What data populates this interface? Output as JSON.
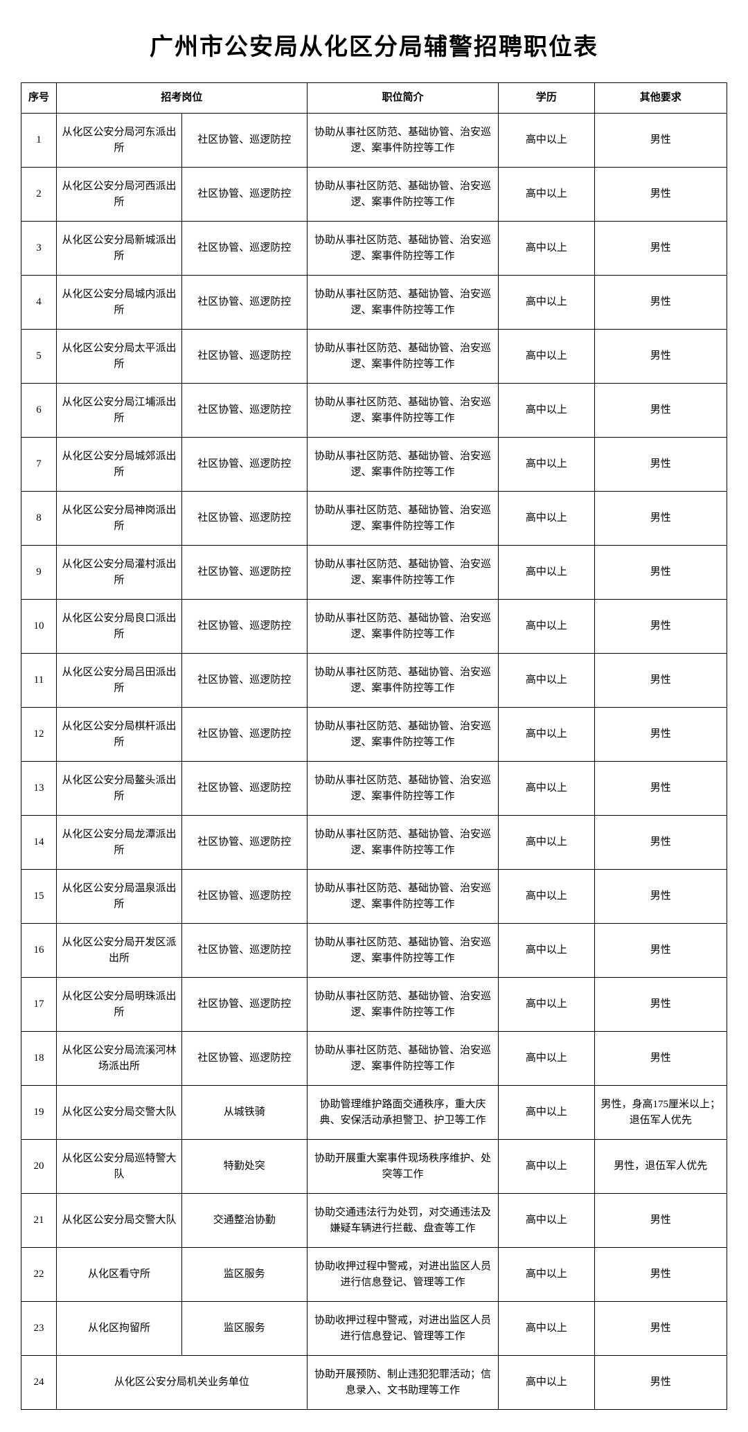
{
  "title": "广州市公安局从化区分局辅警招聘职位表",
  "headers": {
    "seq": "序号",
    "post": "招考岗位",
    "desc": "职位简介",
    "edu": "学历",
    "other": "其他要求"
  },
  "rows": [
    {
      "seq": "1",
      "unit": "从化区公安分局河东派出所",
      "post": "社区协管、巡逻防控",
      "desc": "协助从事社区防范、基础协管、治安巡逻、案事件防控等工作",
      "edu": "高中以上",
      "other": "男性"
    },
    {
      "seq": "2",
      "unit": "从化区公安分局河西派出所",
      "post": "社区协管、巡逻防控",
      "desc": "协助从事社区防范、基础协管、治安巡逻、案事件防控等工作",
      "edu": "高中以上",
      "other": "男性"
    },
    {
      "seq": "3",
      "unit": "从化区公安分局新城派出所",
      "post": "社区协管、巡逻防控",
      "desc": "协助从事社区防范、基础协管、治安巡逻、案事件防控等工作",
      "edu": "高中以上",
      "other": "男性"
    },
    {
      "seq": "4",
      "unit": "从化区公安分局城内派出所",
      "post": "社区协管、巡逻防控",
      "desc": "协助从事社区防范、基础协管、治安巡逻、案事件防控等工作",
      "edu": "高中以上",
      "other": "男性"
    },
    {
      "seq": "5",
      "unit": "从化区公安分局太平派出所",
      "post": "社区协管、巡逻防控",
      "desc": "协助从事社区防范、基础协管、治安巡逻、案事件防控等工作",
      "edu": "高中以上",
      "other": "男性"
    },
    {
      "seq": "6",
      "unit": "从化区公安分局江埔派出所",
      "post": "社区协管、巡逻防控",
      "desc": "协助从事社区防范、基础协管、治安巡逻、案事件防控等工作",
      "edu": "高中以上",
      "other": "男性"
    },
    {
      "seq": "7",
      "unit": "从化区公安分局城郊派出所",
      "post": "社区协管、巡逻防控",
      "desc": "协助从事社区防范、基础协管、治安巡逻、案事件防控等工作",
      "edu": "高中以上",
      "other": "男性"
    },
    {
      "seq": "8",
      "unit": "从化区公安分局神岗派出所",
      "post": "社区协管、巡逻防控",
      "desc": "协助从事社区防范、基础协管、治安巡逻、案事件防控等工作",
      "edu": "高中以上",
      "other": "男性"
    },
    {
      "seq": "9",
      "unit": "从化区公安分局灌村派出所",
      "post": "社区协管、巡逻防控",
      "desc": "协助从事社区防范、基础协管、治安巡逻、案事件防控等工作",
      "edu": "高中以上",
      "other": "男性"
    },
    {
      "seq": "10",
      "unit": "从化区公安分局良口派出所",
      "post": "社区协管、巡逻防控",
      "desc": "协助从事社区防范、基础协管、治安巡逻、案事件防控等工作",
      "edu": "高中以上",
      "other": "男性"
    },
    {
      "seq": "11",
      "unit": "从化区公安分局吕田派出所",
      "post": "社区协管、巡逻防控",
      "desc": "协助从事社区防范、基础协管、治安巡逻、案事件防控等工作",
      "edu": "高中以上",
      "other": "男性"
    },
    {
      "seq": "12",
      "unit": "从化区公安分局棋杆派出所",
      "post": "社区协管、巡逻防控",
      "desc": "协助从事社区防范、基础协管、治安巡逻、案事件防控等工作",
      "edu": "高中以上",
      "other": "男性"
    },
    {
      "seq": "13",
      "unit": "从化区公安分局鳌头派出所",
      "post": "社区协管、巡逻防控",
      "desc": "协助从事社区防范、基础协管、治安巡逻、案事件防控等工作",
      "edu": "高中以上",
      "other": "男性"
    },
    {
      "seq": "14",
      "unit": "从化区公安分局龙潭派出所",
      "post": "社区协管、巡逻防控",
      "desc": "协助从事社区防范、基础协管、治安巡逻、案事件防控等工作",
      "edu": "高中以上",
      "other": "男性"
    },
    {
      "seq": "15",
      "unit": "从化区公安分局温泉派出所",
      "post": "社区协管、巡逻防控",
      "desc": "协助从事社区防范、基础协管、治安巡逻、案事件防控等工作",
      "edu": "高中以上",
      "other": "男性"
    },
    {
      "seq": "16",
      "unit": "从化区公安分局开发区派出所",
      "post": "社区协管、巡逻防控",
      "desc": "协助从事社区防范、基础协管、治安巡逻、案事件防控等工作",
      "edu": "高中以上",
      "other": "男性"
    },
    {
      "seq": "17",
      "unit": "从化区公安分局明珠派出所",
      "post": "社区协管、巡逻防控",
      "desc": "协助从事社区防范、基础协管、治安巡逻、案事件防控等工作",
      "edu": "高中以上",
      "other": "男性"
    },
    {
      "seq": "18",
      "unit": "从化区公安分局流溪河林场派出所",
      "post": "社区协管、巡逻防控",
      "desc": "协助从事社区防范、基础协管、治安巡逻、案事件防控等工作",
      "edu": "高中以上",
      "other": "男性"
    },
    {
      "seq": "19",
      "unit": "从化区公安分局交警大队",
      "post": "从城铁骑",
      "desc": "协助管理维护路面交通秩序，重大庆典、安保活动承担警卫、护卫等工作",
      "edu": "高中以上",
      "other": "男性，身高175厘米以上；退伍军人优先"
    },
    {
      "seq": "20",
      "unit": "从化区公安分局巡特警大队",
      "post": "特勤处突",
      "desc": "协助开展重大案事件现场秩序维护、处突等工作",
      "edu": "高中以上",
      "other": "男性，退伍军人优先"
    },
    {
      "seq": "21",
      "unit": "从化区公安分局交警大队",
      "post": "交通整治协勤",
      "desc": "协助交通违法行为处罚，对交通违法及嫌疑车辆进行拦截、盘查等工作",
      "edu": "高中以上",
      "other": "男性"
    },
    {
      "seq": "22",
      "unit": "从化区看守所",
      "post": "监区服务",
      "desc": "协助收押过程中警戒，对进出监区人员进行信息登记、管理等工作",
      "edu": "高中以上",
      "other": "男性"
    },
    {
      "seq": "23",
      "unit": "从化区拘留所",
      "post": "监区服务",
      "desc": "协助收押过程中警戒，对进出监区人员进行信息登记、管理等工作",
      "edu": "高中以上",
      "other": "男性"
    },
    {
      "seq": "24",
      "merged_unit": "从化区公安分局机关业务单位",
      "desc": "协助开展预防、制止违犯犯罪活动；信息录入、文书助理等工作",
      "edu": "高中以上",
      "other": "男性"
    }
  ]
}
